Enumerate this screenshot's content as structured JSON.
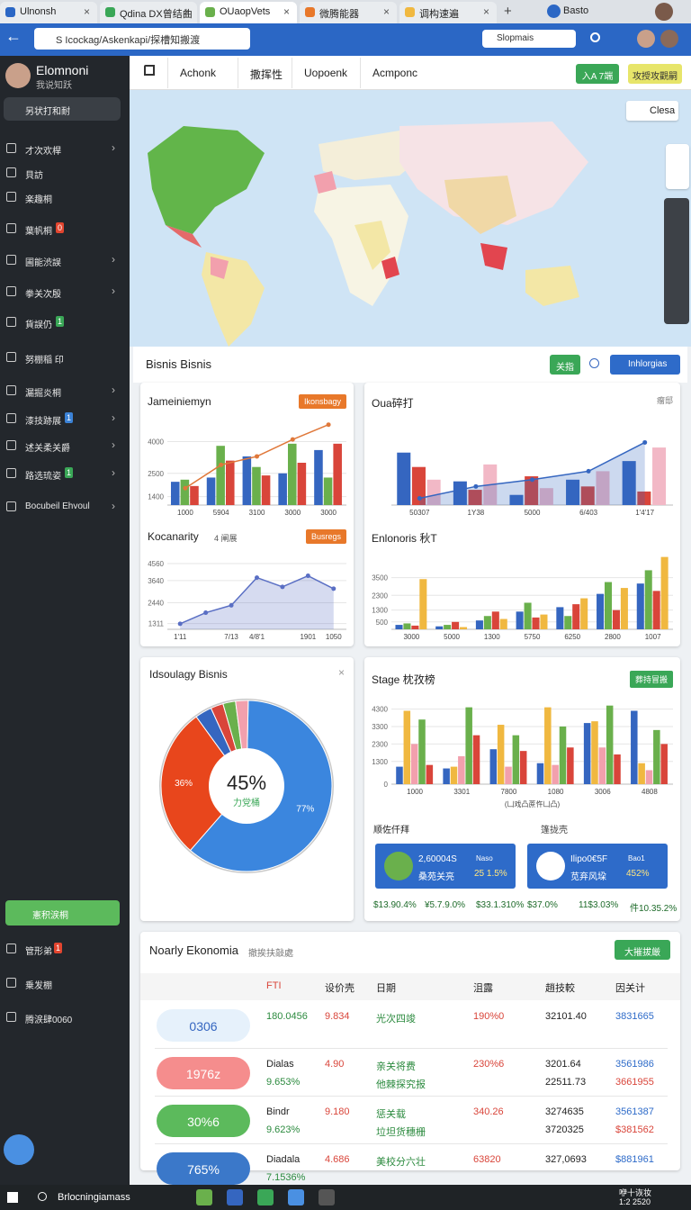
{
  "browser": {
    "tabs": [
      "Ulnonsh",
      "Qdina DX曾结曲",
      "OUaopVets",
      "微腾能器",
      "调构速遍"
    ],
    "address": "S Icockag/Askenkapi/探槽知搬渡",
    "search": "Slopmais",
    "user": "Basto"
  },
  "sidebar": {
    "name": "Elomnoni",
    "sub": "我说知跃",
    "search": "另状打和耐",
    "items": [
      {
        "label": "才次欢桿"
      },
      {
        "label": "貝訪"
      },
      {
        "label": "楽趣桐"
      },
      {
        "label": "葉帆桐",
        "badge": "0",
        "badge_color": "#e2452f"
      },
      {
        "label": "圃能渋誤"
      },
      {
        "label": "拳关次殷"
      },
      {
        "label": "貨誤仍",
        "badge": "1",
        "badge_color": "#3aa757"
      },
      {
        "label": "努棚稲 印"
      },
      {
        "label": "漏掘炎桐"
      },
      {
        "label": "漆技跡展",
        "badge": "1",
        "badge_color": "#3b82d6"
      },
      {
        "label": "述关柔关爵"
      },
      {
        "label": "路选琉姿",
        "badge": "1",
        "badge_color": "#3aa757"
      },
      {
        "label": "Bocubeil Ehvoul"
      }
    ],
    "action": "憲积涙桐",
    "bottom": [
      {
        "label": "管形弟",
        "badge": "1",
        "badge_color": "#e2452f"
      },
      {
        "label": "乗发棚"
      },
      {
        "label": "腾涙肆0060"
      }
    ]
  },
  "nav": {
    "items": [
      "Achonk",
      "撒挥性",
      "Uopoenk",
      "Acmponc"
    ],
    "buttons": [
      "入A 7端",
      "攻授攻觀嗣"
    ],
    "map_button": "Clesa"
  },
  "section": {
    "title": "Bisnis Bisnis",
    "buttons": [
      "关指",
      "Inhlorgias"
    ]
  },
  "charts": [
    {
      "type": "bar",
      "title": "Jameiniemyn",
      "button": "Ikonsbagy",
      "button_color": "#e8782a",
      "categories": [
        "1000",
        "5904",
        "3100",
        "3000",
        "3000"
      ],
      "ylim": [
        1000,
        5000
      ],
      "yticks": [
        1400,
        2500,
        4000
      ],
      "series": [
        {
          "name": "A",
          "color": "#3566c0",
          "values": [
            2100,
            2300,
            3300,
            2500,
            3600
          ]
        },
        {
          "name": "B",
          "color": "#6ab04c",
          "values": [
            2200,
            3800,
            2800,
            3900,
            2300
          ]
        },
        {
          "name": "C",
          "color": "#d9453a",
          "values": [
            1900,
            3100,
            2400,
            3000,
            3900
          ]
        },
        {
          "name": "D",
          "color": "#e0783a",
          "type": "line",
          "values": [
            1800,
            2900,
            3300,
            4100,
            4800
          ]
        }
      ]
    },
    {
      "type": "bar",
      "title": "Oua碎打",
      "button": "瘤邸",
      "categories": [
        "50307",
        "1Y38",
        "5000",
        "6/403",
        "1'4'17"
      ],
      "ylim": [
        0,
        100
      ],
      "yticks": [],
      "series": [
        {
          "name": "A",
          "color": "#3566c0",
          "values": [
            62,
            28,
            12,
            30,
            52
          ]
        },
        {
          "name": "B",
          "color": "#d9453a",
          "values": [
            45,
            18,
            34,
            22,
            16
          ]
        },
        {
          "name": "C",
          "color": "#f2b8c6",
          "values": [
            30,
            48,
            20,
            40,
            68
          ]
        },
        {
          "name": "D",
          "color": "#3566c0",
          "type": "line",
          "area": true,
          "values": [
            8,
            22,
            30,
            40,
            74
          ]
        }
      ]
    },
    {
      "type": "line",
      "title": "Kocanarity",
      "tag": "4 阐展",
      "button": "Busregs",
      "button_color": "#e8782a",
      "categories": [
        "1'11",
        null,
        "7/13",
        "4/8'1",
        null,
        "1901",
        "1050"
      ],
      "ylim": [
        1000,
        5000
      ],
      "yticks": [
        1311,
        2440,
        3640,
        4560
      ],
      "series": [
        {
          "name": "A",
          "color": "#5a6fc4",
          "type": "line",
          "area": true,
          "values": [
            1300,
            1900,
            2300,
            3800,
            3300,
            3900,
            3200
          ]
        }
      ]
    },
    {
      "type": "bar",
      "title": "Enlonoris 秋T",
      "categories": [
        "3000",
        "5000",
        "1300",
        "5750",
        "6250",
        "2800",
        "1007"
      ],
      "ylim": [
        0,
        5000
      ],
      "yticks": [
        500,
        1300,
        2300,
        3500
      ],
      "series": [
        {
          "name": "A",
          "color": "#3566c0",
          "values": [
            300,
            200,
            600,
            1200,
            1500,
            2400,
            3100
          ]
        },
        {
          "name": "B",
          "color": "#6ab04c",
          "values": [
            400,
            300,
            900,
            1800,
            900,
            3200,
            4000
          ]
        },
        {
          "name": "C",
          "color": "#d9453a",
          "values": [
            250,
            500,
            1200,
            800,
            1700,
            1300,
            2600
          ]
        },
        {
          "name": "D",
          "color": "#f0b840",
          "values": [
            3400,
            150,
            700,
            1000,
            2100,
            2800,
            4900
          ]
        }
      ]
    },
    {
      "type": "bar",
      "title": "Stage 枕孜榜",
      "button": "葬持冒搬",
      "button_color": "#3aa757",
      "axis_label": "(凵戏凸蔗忤凵凸)",
      "categories": [
        "1000",
        "3301",
        "7800",
        "1080",
        "3006",
        "4808"
      ],
      "ylim": [
        0,
        5000
      ],
      "yticks": [
        0,
        1300,
        2300,
        3300,
        4300
      ],
      "series": [
        {
          "name": "A",
          "color": "#3566c0",
          "values": [
            1000,
            900,
            2000,
            1200,
            3500,
            4200
          ]
        },
        {
          "name": "B",
          "color": "#f0b840",
          "values": [
            4200,
            1000,
            3400,
            4400,
            3600,
            1200
          ]
        },
        {
          "name": "C",
          "color": "#f2a0ad",
          "values": [
            2300,
            1600,
            1000,
            1100,
            2100,
            800
          ]
        },
        {
          "name": "D",
          "color": "#6ab04c",
          "values": [
            3700,
            4400,
            2800,
            3300,
            4500,
            3100
          ]
        },
        {
          "name": "E",
          "color": "#d9453a",
          "values": [
            1100,
            2800,
            1900,
            2100,
            1700,
            2300
          ]
        }
      ]
    }
  ],
  "pie": {
    "type": "pie",
    "title": "Idsoulagy Bisnis",
    "center": "45%",
    "center_sub": "力党桶",
    "values": [
      77,
      36,
      4,
      3,
      3,
      3
    ],
    "value_labels": [
      "77%",
      "36%",
      null,
      null,
      null,
      null
    ],
    "colors": [
      "#3b86de",
      "#e8461c",
      "#3566c0",
      "#d9453a",
      "#6ab04c",
      "#f2a0ad"
    ]
  },
  "stats_label": "顺佐仟拜",
  "stats_tag": "篷拢壳",
  "tiles": [
    {
      "value": "2,60004S",
      "sub": "桑苑关亮",
      "tag": "Naso",
      "pct": "25 1.5%"
    },
    {
      "value": "Ilipo0€5F",
      "sub": "苋弃风垜",
      "tag": "Bao1",
      "pct": "452%"
    }
  ],
  "stats": [
    "$13.90.4%",
    "¥5.7.9.0%",
    "$33.1.310%",
    "$37.0%",
    "11$3.03%",
    "件10.35.2%"
  ],
  "table": {
    "title": "Noarly Ekonomia",
    "subtitle": "撤挨扶敲處",
    "button": "大摧拔厳",
    "headers": [
      "FTI",
      "设价壳",
      "日期",
      "沮露",
      "趙技較",
      "因关计"
    ],
    "rows": [
      {
        "pill": "0306",
        "pill_color": "#e6f1fb",
        "cells": [
          "180.0456",
          "9.834",
          "光次四竣",
          "190%0",
          "32101.40",
          "3831665"
        ],
        "sub": []
      },
      {
        "pill": "1976z",
        "pill_color": "#f58d8d",
        "cells": [
          "Dialas",
          "4.90",
          "亲关将费",
          "230%6",
          "3201.64",
          "3561986"
        ],
        "sub": [
          "9.653%",
          "他棘探究报",
          "22511.73",
          "3661955"
        ]
      },
      {
        "pill": "30%6",
        "pill_color": "#5cba5c",
        "cells": [
          "Bindr",
          "9.180",
          "惩关载",
          "340.26",
          "3274635",
          "3561387"
        ],
        "sub": [
          "9.623%",
          "垃坦货穗栅",
          "3720325",
          "$381562"
        ]
      },
      {
        "pill": "765%",
        "pill_color": "#3b78c9",
        "cells": [
          "Diadala",
          "4.686",
          "美校分六壮",
          "63820",
          "327,0693",
          "$881961"
        ],
        "sub": [
          "7.1536%"
        ]
      }
    ]
  },
  "taskbar": {
    "search": "Brlocningiamass",
    "clock": [
      "咿十诙妆",
      "1:2 2520"
    ]
  }
}
